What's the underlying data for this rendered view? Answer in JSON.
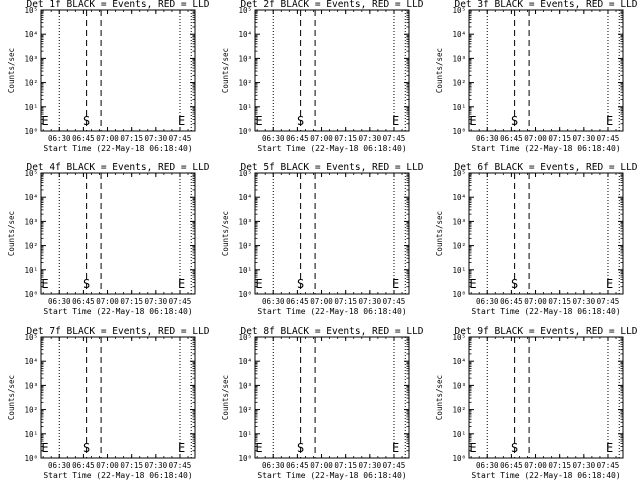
{
  "panel_shared": {
    "ylabel": "Counts/sec",
    "xlabel": "Start Time (22-May-18 06:18:40)",
    "x_tick_labels": [
      "06:30",
      "06:45",
      "07:00",
      "07:15",
      "07:30",
      "07:45"
    ],
    "y_tick_labels": [
      "10⁰",
      "10¹",
      "10²",
      "10³",
      "10⁴",
      "10⁵"
    ],
    "markers": [
      {
        "letter": "E",
        "time": "06:18:40"
      },
      {
        "letter": "S",
        "time": "06:47:00"
      },
      {
        "letter": "E",
        "time": "07:46:00"
      }
    ]
  },
  "chart_data": [
    {
      "type": "line",
      "title": "Det 1f BLACK = Events, RED = LLD",
      "xlabel": "Start Time (22-May-18 06:18:40)",
      "ylabel": "Counts/sec",
      "x_range": [
        "06:18:40",
        "07:54:20"
      ],
      "ylim": [
        1,
        100000
      ],
      "y_scale": "log",
      "series": [],
      "dotted_lines": [
        "06:30",
        "07:45",
        "07:52"
      ],
      "dashed_lines": [
        "06:47",
        "06:56"
      ],
      "grid": false
    },
    {
      "type": "line",
      "title": "Det 2f BLACK = Events, RED = LLD",
      "xlabel": "Start Time (22-May-18 06:18:40)",
      "ylabel": "Counts/sec",
      "x_range": [
        "06:18:40",
        "07:54:20"
      ],
      "ylim": [
        1,
        100000
      ],
      "y_scale": "log",
      "series": [],
      "dotted_lines": [
        "06:30",
        "07:45",
        "07:52"
      ],
      "dashed_lines": [
        "06:47",
        "06:56"
      ],
      "grid": false
    },
    {
      "type": "line",
      "title": "Det 3f BLACK = Events, RED = LLD",
      "xlabel": "Start Time (22-May-18 06:18:40)",
      "ylabel": "Counts/sec",
      "x_range": [
        "06:18:40",
        "07:54:20"
      ],
      "ylim": [
        1,
        100000
      ],
      "y_scale": "log",
      "series": [],
      "dotted_lines": [
        "06:30",
        "07:45",
        "07:52"
      ],
      "dashed_lines": [
        "06:47",
        "06:56"
      ],
      "grid": false
    },
    {
      "type": "line",
      "title": "Det 4f BLACK = Events, RED = LLD",
      "xlabel": "Start Time (22-May-18 06:18:40)",
      "ylabel": "Counts/sec",
      "x_range": [
        "06:18:40",
        "07:54:20"
      ],
      "ylim": [
        1,
        100000
      ],
      "y_scale": "log",
      "series": [],
      "dotted_lines": [
        "06:30",
        "07:45",
        "07:52"
      ],
      "dashed_lines": [
        "06:47",
        "06:56"
      ],
      "grid": false
    },
    {
      "type": "line",
      "title": "Det 5f BLACK = Events, RED = LLD",
      "xlabel": "Start Time (22-May-18 06:18:40)",
      "ylabel": "Counts/sec",
      "x_range": [
        "06:18:40",
        "07:54:20"
      ],
      "ylim": [
        1,
        100000
      ],
      "y_scale": "log",
      "series": [],
      "dotted_lines": [
        "06:30",
        "07:45",
        "07:52"
      ],
      "dashed_lines": [
        "06:47",
        "06:56"
      ],
      "grid": false
    },
    {
      "type": "line",
      "title": "Det 6f BLACK = Events, RED = LLD",
      "xlabel": "Start Time (22-May-18 06:18:40)",
      "ylabel": "Counts/sec",
      "x_range": [
        "06:18:40",
        "07:54:20"
      ],
      "ylim": [
        1,
        100000
      ],
      "y_scale": "log",
      "series": [],
      "dotted_lines": [
        "06:30",
        "07:45",
        "07:52"
      ],
      "dashed_lines": [
        "06:47",
        "06:56"
      ],
      "grid": false
    },
    {
      "type": "line",
      "title": "Det 7f BLACK = Events, RED = LLD",
      "xlabel": "Start Time (22-May-18 06:18:40)",
      "ylabel": "Counts/sec",
      "x_range": [
        "06:18:40",
        "07:54:20"
      ],
      "ylim": [
        1,
        100000
      ],
      "y_scale": "log",
      "series": [],
      "dotted_lines": [
        "06:30",
        "07:45",
        "07:52"
      ],
      "dashed_lines": [
        "06:47",
        "06:56"
      ],
      "grid": false
    },
    {
      "type": "line",
      "title": "Det 8f BLACK = Events, RED = LLD",
      "xlabel": "Start Time (22-May-18 06:18:40)",
      "ylabel": "Counts/sec",
      "x_range": [
        "06:18:40",
        "07:54:20"
      ],
      "ylim": [
        1,
        100000
      ],
      "y_scale": "log",
      "series": [],
      "dotted_lines": [
        "06:30",
        "07:45",
        "07:52"
      ],
      "dashed_lines": [
        "06:47",
        "06:56"
      ],
      "grid": false
    },
    {
      "type": "line",
      "title": "Det 9f BLACK = Events, RED = LLD",
      "xlabel": "Start Time (22-May-18 06:18:40)",
      "ylabel": "Counts/sec",
      "x_range": [
        "06:18:40",
        "07:54:20"
      ],
      "ylim": [
        1,
        100000
      ],
      "y_scale": "log",
      "series": [],
      "dotted_lines": [
        "06:30",
        "07:45",
        "07:52"
      ],
      "dashed_lines": [
        "06:47",
        "06:56"
      ],
      "grid": false
    }
  ]
}
